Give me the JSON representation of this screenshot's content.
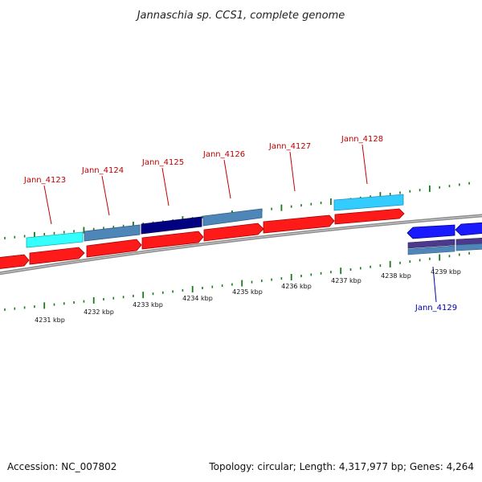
{
  "title": "Jannaschia sp. CCS1, complete genome",
  "footer": {
    "accession": "Accession: NC_007802",
    "summary": "Topology: circular; Length: 4,317,977 bp; Genes: 4,264"
  },
  "colors": {
    "forward_cds": "#ff1a1a",
    "reverse_cds": "#1a1aff",
    "backbone": "#8c8c8c",
    "tick": "#1a7a1a",
    "cyan": "#33ffff",
    "light_blue": "#33ccff",
    "steel_blue": "#4f86b8",
    "navy": "#000080",
    "purple": "#4b3a8c",
    "forward_label": "#c00000",
    "reverse_label": "#0000aa"
  },
  "gene_labels": [
    {
      "name": "Jann_4123",
      "strand": "forward"
    },
    {
      "name": "Jann_4124",
      "strand": "forward"
    },
    {
      "name": "Jann_4125",
      "strand": "forward"
    },
    {
      "name": "Jann_4126",
      "strand": "forward"
    },
    {
      "name": "Jann_4127",
      "strand": "forward"
    },
    {
      "name": "Jann_4128",
      "strand": "forward"
    },
    {
      "name": "Jann_4129",
      "strand": "reverse"
    }
  ],
  "scale_labels": [
    "4231 kbp",
    "4232 kbp",
    "4233 kbp",
    "4234 kbp",
    "4235 kbp",
    "4236 kbp",
    "4237 kbp",
    "4238 kbp",
    "4239 kbp"
  ]
}
